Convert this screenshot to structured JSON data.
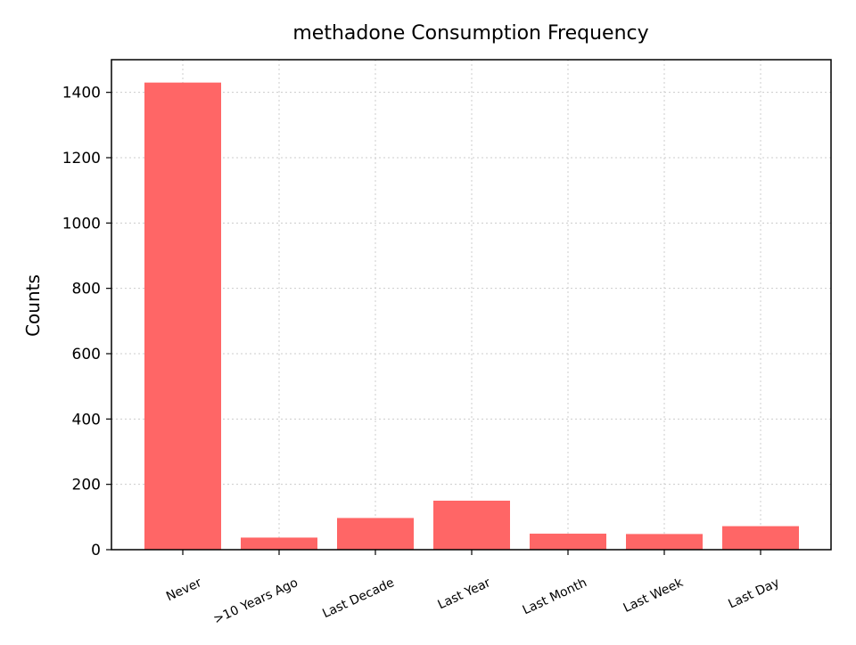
{
  "chart_data": {
    "type": "bar",
    "title": "methadone Consumption Frequency",
    "xlabel": "",
    "ylabel": "Counts",
    "categories": [
      "Never",
      ">10 Years Ago",
      "Last Decade",
      "Last Year",
      "Last Month",
      "Last Week",
      "Last Day"
    ],
    "values": [
      1430,
      37,
      97,
      150,
      49,
      48,
      72
    ],
    "ylim": [
      0,
      1500
    ],
    "yticks": [
      0,
      200,
      400,
      600,
      800,
      1000,
      1200,
      1400
    ],
    "grid": true,
    "legend": "none",
    "colors": {
      "bar": "#ff6666",
      "grid": "#cccccc",
      "axis": "#000000"
    }
  }
}
